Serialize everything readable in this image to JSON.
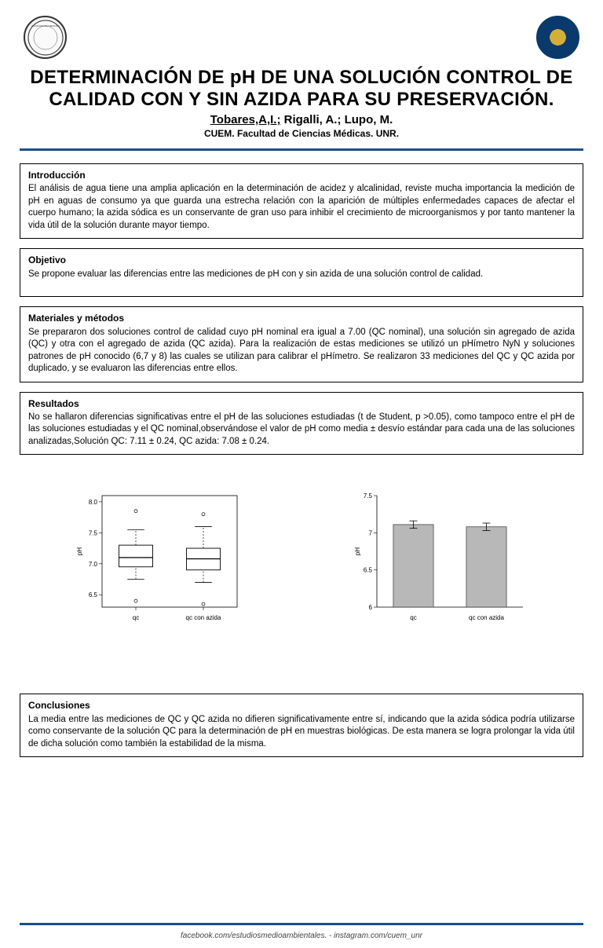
{
  "title_line1": "DETERMINACIÓN DE pH DE UNA SOLUCIÓN CONTROL DE",
  "title_line2": "CALIDAD CON Y SIN AZIDA PARA SU PRESERVACIÓN.",
  "authors_lead": "Tobares,A,I.;",
  "authors_rest": " Rigalli, A.; Lupo, M.",
  "affiliation": "CUEM. Facultad de Ciencias Médicas. UNR.",
  "sections": {
    "intro": {
      "title": "Introducción",
      "body": "El análisis de agua tiene una amplia aplicación en la determinación de acidez y alcalinidad, reviste mucha importancia la medición de pH en aguas de consumo ya que guarda una estrecha relación con la aparición de múltiples enfermedades capaces de afectar el cuerpo humano; la azida sódica es un conservante de gran uso para inhibir el crecimiento de microorganismos y por tanto mantener la vida útil de la solución durante mayor tiempo."
    },
    "objetivo": {
      "title": "Objetivo",
      "body": "Se propone evaluar las diferencias entre las mediciones de pH con y sin azida de una solución control de calidad."
    },
    "materiales": {
      "title": "Materiales y métodos",
      "body": "Se prepararon dos soluciones control de calidad cuyo pH nominal era igual a 7.00 (QC nominal), una solución sin agregado de azida (QC) y otra con el agregado de azida (QC azida). Para la realización de estas mediciones se utilizó un pHímetro NyN y soluciones patrones de pH conocido (6,7 y 8) las cuales se utilizan para calibrar el pHímetro. Se realizaron 33 mediciones del QC y QC azida por duplicado, y se evaluaron las diferencias entre ellos."
    },
    "resultados": {
      "title": "Resultados",
      "body": "No se hallaron diferencias significativas entre el pH de las soluciones estudiadas (t de Student, p >0.05), como tampoco entre el pH de las soluciones estudiadas y el QC nominal,observándose el valor de pH como media ± desvío estándar para cada una de las soluciones analizadas,Solución QC: 7.11 ± 0.24, QC azida: 7.08 ± 0.24."
    },
    "conclusiones": {
      "title": "Conclusiones",
      "body": "La media entre las mediciones de QC y QC azida no difieren significativamente entre sí, indicando que la azida sódica podría utilizarse como conservante de la solución QC para la determinación de pH en muestras biológicas. De esta manera se logra prolongar la vida útil de dicha solución como también la estabilidad de la misma."
    }
  },
  "boxplot": {
    "type": "boxplot",
    "ylabel": "pH",
    "categories": [
      "qc",
      "qc con azida"
    ],
    "yticks": [
      6.5,
      7.0,
      7.5,
      8.0
    ],
    "ytick_labels": [
      "6.5",
      "7.0",
      "7.5",
      "8.0"
    ],
    "ylim": [
      6.3,
      8.1
    ],
    "series": [
      {
        "q1": 6.95,
        "median": 7.1,
        "q3": 7.3,
        "whisker_low": 6.75,
        "whisker_high": 7.55,
        "outliers": [
          7.85,
          6.4
        ]
      },
      {
        "q1": 6.9,
        "median": 7.08,
        "q3": 7.25,
        "whisker_low": 6.7,
        "whisker_high": 7.6,
        "outliers": [
          7.8,
          6.35
        ]
      }
    ],
    "box_fill": "#ffffff",
    "stroke": "#000000",
    "background": "#ffffff",
    "label_fontsize": 8
  },
  "barchart": {
    "type": "bar",
    "ylabel": "pH",
    "categories": [
      "qc",
      "qc con azida"
    ],
    "values": [
      7.11,
      7.08
    ],
    "errors": [
      0.05,
      0.05
    ],
    "ylim": [
      6.0,
      7.5
    ],
    "yticks": [
      6.0,
      6.5,
      7.0,
      7.5
    ],
    "ytick_labels": [
      "6",
      "6.5",
      "7",
      "7.5"
    ],
    "bar_fill": "#b8b8b8",
    "bar_stroke": "#333333",
    "background": "#ffffff",
    "bar_width": 0.55,
    "label_fontsize": 8
  },
  "footer": "facebook.com/estudiosmedioambientales. - instagram.com/cuem_unr",
  "colors": {
    "divider": "#1a4f8f",
    "text": "#000000"
  }
}
